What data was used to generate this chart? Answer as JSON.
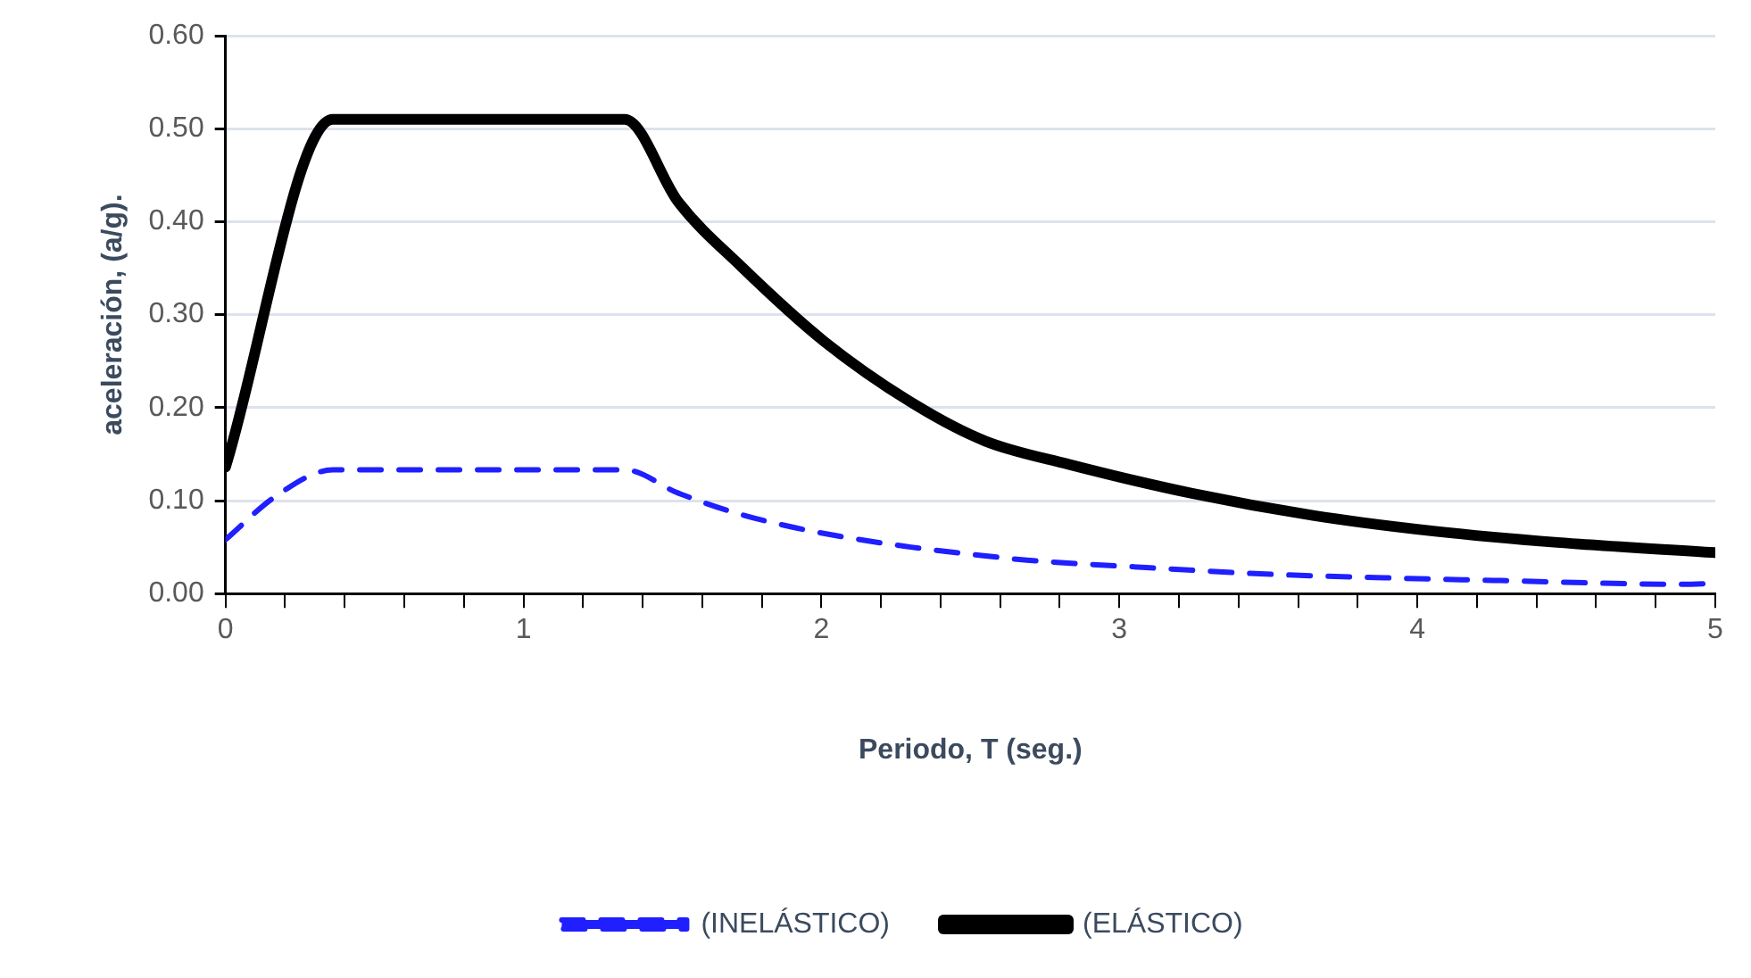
{
  "chart_data": {
    "type": "line",
    "xlabel": "Periodo, T (seg.)",
    "ylabel": "aceleración, (a/g).",
    "xlim": [
      0,
      5
    ],
    "xticks": [
      0,
      {
        "value": 0.2,
        "label": null
      },
      {
        "value": 0.4,
        "label": null
      },
      {
        "value": 0.6,
        "label": null
      },
      {
        "value": 0.8,
        "label": null
      },
      1,
      {
        "value": 1.2,
        "label": null
      },
      {
        "value": 1.4,
        "label": null
      },
      {
        "value": 1.6,
        "label": null
      },
      {
        "value": 1.8,
        "label": null
      },
      2,
      {
        "value": 2.2,
        "label": null
      },
      {
        "value": 2.4,
        "label": null
      },
      {
        "value": 2.6,
        "label": null
      },
      {
        "value": 2.8,
        "label": null
      },
      3,
      {
        "value": 3.2,
        "label": null
      },
      {
        "value": 3.4,
        "label": null
      },
      {
        "value": 3.6,
        "label": null
      },
      {
        "value": 3.8,
        "label": null
      },
      4,
      {
        "value": 4.2,
        "label": null
      },
      {
        "value": 4.4,
        "label": null
      },
      {
        "value": 4.6,
        "label": null
      },
      {
        "value": 4.8,
        "label": null
      },
      5
    ],
    "ylim": [
      0,
      0.6
    ],
    "yticks": [
      {
        "value": 0,
        "label": "0.00"
      },
      {
        "value": 0.1,
        "label": "0.10"
      },
      {
        "value": 0.2,
        "label": "0.20"
      },
      {
        "value": 0.3,
        "label": "0.30"
      },
      {
        "value": 0.4,
        "label": "0.40"
      },
      {
        "value": 0.5,
        "label": "0.50"
      },
      {
        "value": 0.6,
        "label": "0.60"
      }
    ],
    "grid": "y",
    "legend": "bottom",
    "marker": "none",
    "series": [
      {
        "name": "(INELÁSTICO)",
        "color": "#1f1fff",
        "line_style": "dashed",
        "x": [
          0,
          0.17,
          0.36,
          1.34,
          1.52,
          1.72,
          1.91,
          2.11,
          2.3,
          2.51,
          2.69,
          3.09,
          3.49,
          3.89,
          4.28,
          4.89,
          5
        ],
        "values": [
          0.058,
          0.105,
          0.133,
          0.133,
          0.108,
          0.086,
          0.071,
          0.059,
          0.05,
          0.042,
          0.036,
          0.028,
          0.021,
          0.017,
          0.014,
          0.01,
          0.011
        ]
      },
      {
        "name": "(ELÁSTICO)",
        "color": "#000000",
        "line_style": "solid",
        "x": [
          0,
          0.36,
          1.34,
          1.52,
          1.73,
          2.01,
          2.32,
          2.55,
          2.83,
          3.24,
          3.65,
          4.06,
          4.47,
          5
        ],
        "values": [
          0.136,
          0.51,
          0.51,
          0.421,
          0.352,
          0.271,
          0.202,
          0.164,
          0.139,
          0.108,
          0.084,
          0.067,
          0.055,
          0.044
        ]
      }
    ]
  }
}
